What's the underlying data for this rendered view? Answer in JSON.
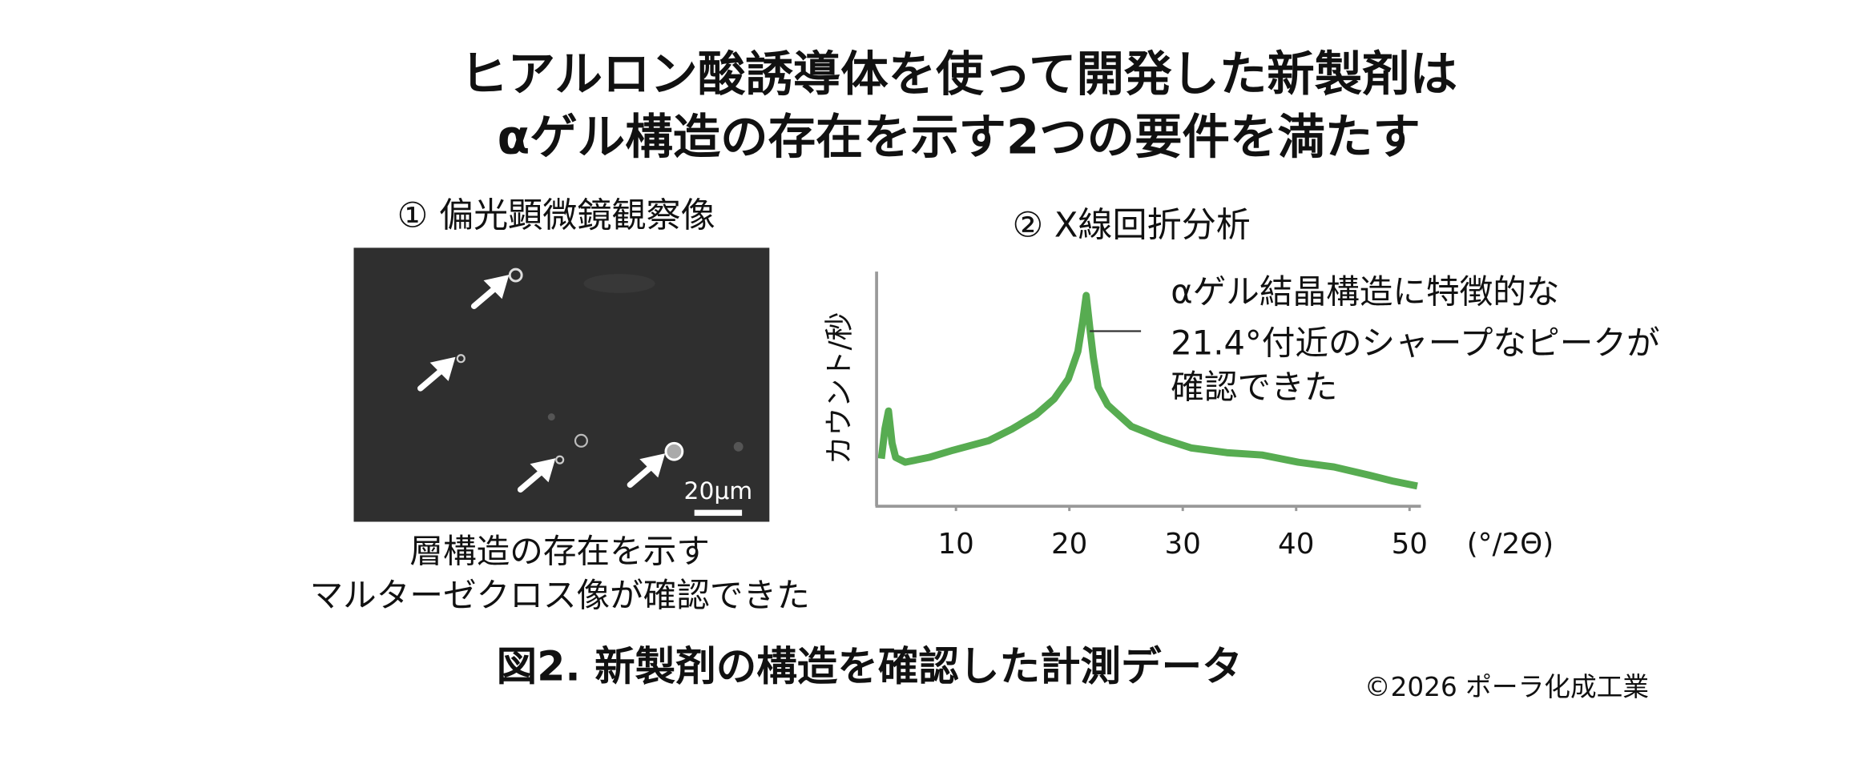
{
  "header": {
    "title_lines": [
      "ヒアルロン酸誘導体を使って開発した新製剤は",
      "αゲル構造の存在を示す2つの要件を満たす"
    ]
  },
  "panel1": {
    "heading": "① 偏光顕微鏡観察像",
    "scale_bar": "20μm",
    "caption_lines": [
      "層構造の存在を示す",
      "マルターゼクロス像が確認できた"
    ]
  },
  "panel2": {
    "heading": "② X線回折分析",
    "y_label": "カウント/秒",
    "x_unit": "(°/2Θ)",
    "annotation_lines": [
      "αゲル結晶構造に特徴的な",
      "21.4°付近のシャープなピークが",
      "確認できた"
    ],
    "xlim": [
      3,
      51
    ],
    "xticks": [
      10,
      20,
      30,
      40,
      50
    ]
  },
  "footer": {
    "caption": "図2. 新製剤の構造を確認した計測データ",
    "credit": "©2026 ポーラ化成工業"
  }
}
